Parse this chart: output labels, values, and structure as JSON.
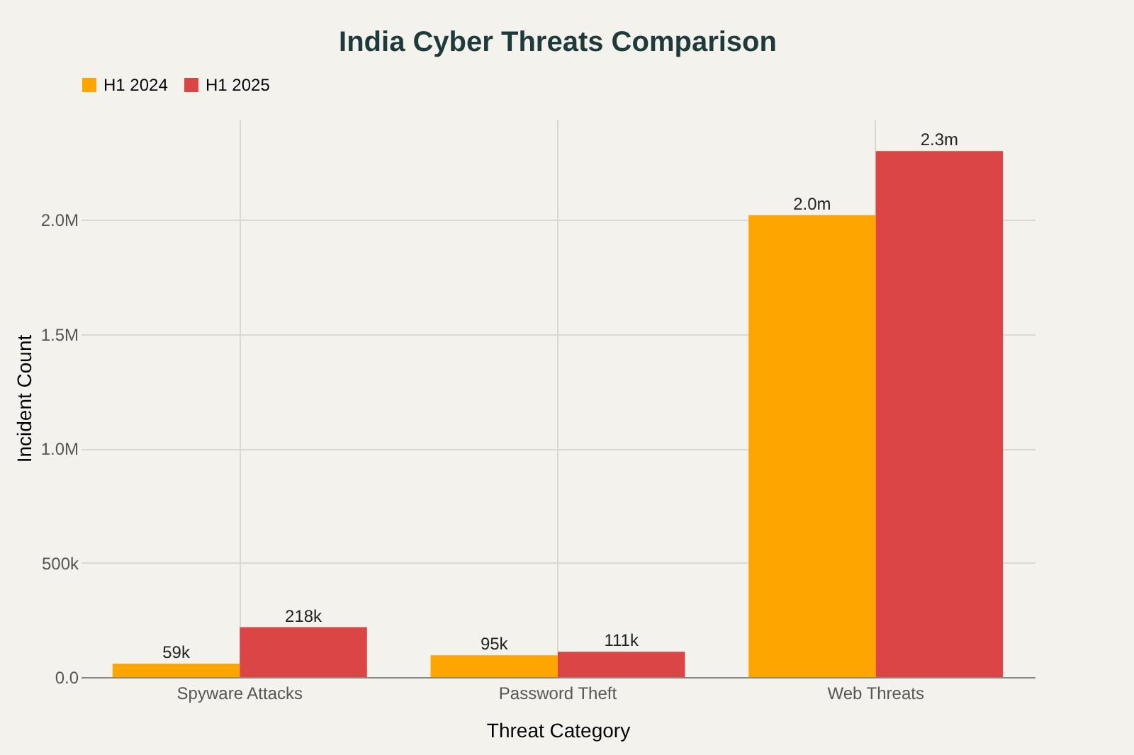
{
  "chart_data": {
    "type": "bar",
    "title": "India Cyber Threats Comparison",
    "xlabel": "Threat Category",
    "ylabel": "Incident Count",
    "categories": [
      "Spyware Attacks",
      "Password Theft",
      "Web Threats"
    ],
    "series": [
      {
        "name": "H1 2024",
        "color": "#ffa500",
        "values": [
          59000,
          95000,
          2020000
        ],
        "value_labels": [
          "59k",
          "95k",
          "2.0m"
        ]
      },
      {
        "name": "H1 2025",
        "color": "#db4545",
        "values": [
          218000,
          111000,
          2300000
        ],
        "value_labels": [
          "218k",
          "111k",
          "2.3m"
        ]
      }
    ],
    "ylim": [
      0,
      2440000
    ],
    "yticks": [
      {
        "value": 0,
        "label": "0.0"
      },
      {
        "value": 500000,
        "label": "500k"
      },
      {
        "value": 1000000,
        "label": "1.0M"
      },
      {
        "value": 1500000,
        "label": "1.5M"
      },
      {
        "value": 2000000,
        "label": "2.0M"
      }
    ],
    "grid": true,
    "legend": "top"
  }
}
